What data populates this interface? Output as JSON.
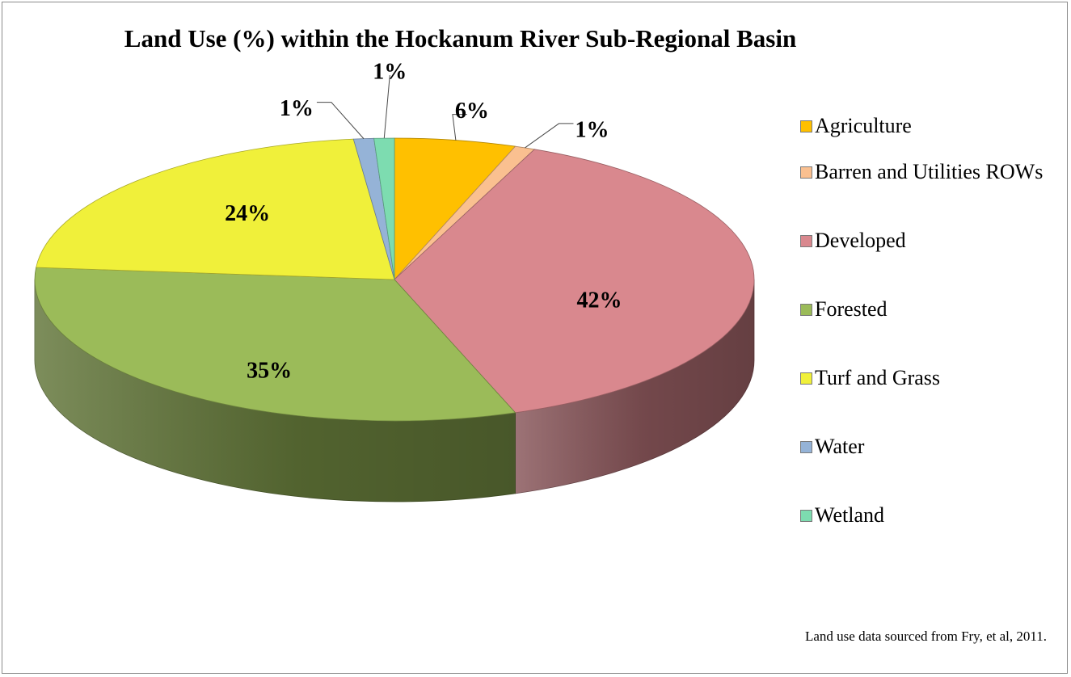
{
  "chart_data": {
    "type": "pie",
    "title": "Land Use (%) within the Hockanum River Sub-Regional Basin",
    "categories": [
      "Agriculture",
      "Barren and Utilities ROWs",
      "Developed",
      "Forested",
      "Turf and Grass",
      "Water",
      "Wetland"
    ],
    "values": [
      6,
      1,
      42,
      35,
      24,
      1,
      1
    ],
    "data_labels": [
      "6%",
      "1%",
      "42%",
      "35%",
      "24%",
      "1%",
      "1%"
    ],
    "colors": [
      "#FFC000",
      "#FAC090",
      "#D9888E",
      "#9BBB59",
      "#F0F03A",
      "#95B3D7",
      "#7DDCB0"
    ],
    "legend_position": "right",
    "style": "3d-pie"
  },
  "source_note": "Land use data sourced from Fry, et al, 2011."
}
